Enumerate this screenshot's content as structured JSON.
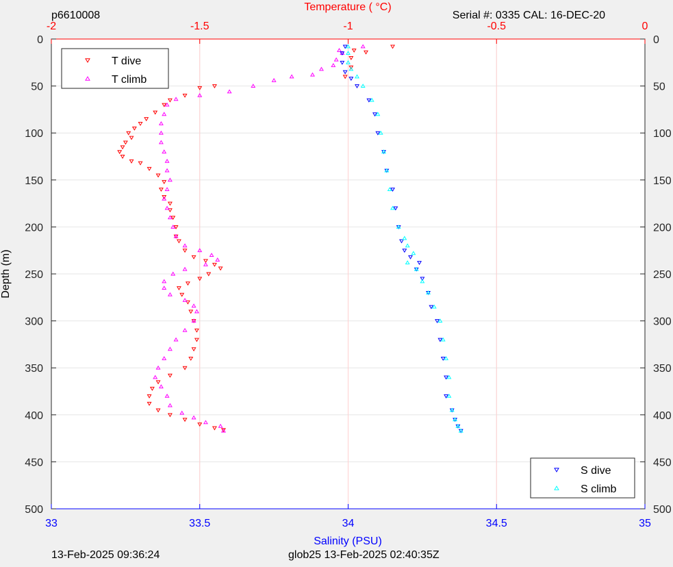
{
  "header": {
    "mission_id": "p6610008",
    "serial_cal": "Serial #: 0335  CAL: 16-DEC-20",
    "top_axis_label": "Temperature (    °C)"
  },
  "footer": {
    "timestamp_left": "13-Feb-2025 09:36:24",
    "timestamp_right": "glob25 13-Feb-2025 02:40:35Z"
  },
  "colors": {
    "temperature": "#ff0000",
    "salinity": "#0000ff",
    "t_dive": "#ff0000",
    "t_climb": "#ff00ff",
    "s_dive": "#0000ff",
    "s_climb": "#00ffff",
    "grid": "#e6e6e6",
    "temp_grid": "#ffd0d0"
  },
  "chart_data": {
    "type": "scatter",
    "ylabel": "Depth (m)",
    "xlabel": "Salinity (PSU)",
    "x2label": "Temperature (    °C)",
    "ylim": [
      0,
      500
    ],
    "y_reversed": true,
    "xlim": [
      33,
      35
    ],
    "x2lim": [
      -2,
      0
    ],
    "yticks": [
      "0",
      "50",
      "100",
      "150",
      "200",
      "250",
      "300",
      "350",
      "400",
      "450",
      "500"
    ],
    "xticks": [
      "33",
      "33.5",
      "34",
      "34.5",
      "35"
    ],
    "x2ticks": [
      "-2",
      "-1.5",
      "-1",
      "-0.5",
      "0"
    ],
    "grid": true,
    "legends": [
      {
        "placement": "top-left",
        "entries": [
          "T dive",
          "T climb"
        ]
      },
      {
        "placement": "bottom-right",
        "entries": [
          "S dive",
          "S climb"
        ]
      }
    ],
    "series": [
      {
        "name": "T dive",
        "axis": "temperature",
        "marker": "triangle-down",
        "points": [
          [
            -0.85,
            8
          ],
          [
            -0.98,
            12
          ],
          [
            -0.94,
            14
          ],
          [
            -0.99,
            20
          ],
          [
            -0.99,
            30
          ],
          [
            -1.01,
            40
          ],
          [
            -1.45,
            50
          ],
          [
            -1.5,
            52
          ],
          [
            -1.55,
            60
          ],
          [
            -1.6,
            65
          ],
          [
            -1.62,
            70
          ],
          [
            -1.65,
            78
          ],
          [
            -1.68,
            85
          ],
          [
            -1.7,
            90
          ],
          [
            -1.72,
            95
          ],
          [
            -1.74,
            100
          ],
          [
            -1.73,
            105
          ],
          [
            -1.75,
            110
          ],
          [
            -1.76,
            115
          ],
          [
            -1.77,
            120
          ],
          [
            -1.76,
            125
          ],
          [
            -1.73,
            130
          ],
          [
            -1.7,
            132
          ],
          [
            -1.67,
            138
          ],
          [
            -1.64,
            145
          ],
          [
            -1.62,
            152
          ],
          [
            -1.63,
            160
          ],
          [
            -1.62,
            168
          ],
          [
            -1.6,
            175
          ],
          [
            -1.6,
            182
          ],
          [
            -1.59,
            190
          ],
          [
            -1.58,
            200
          ],
          [
            -1.58,
            210
          ],
          [
            -1.57,
            215
          ],
          [
            -1.55,
            225
          ],
          [
            -1.52,
            232
          ],
          [
            -1.48,
            236
          ],
          [
            -1.45,
            240
          ],
          [
            -1.43,
            244
          ],
          [
            -1.47,
            250
          ],
          [
            -1.5,
            255
          ],
          [
            -1.54,
            260
          ],
          [
            -1.57,
            265
          ],
          [
            -1.56,
            272
          ],
          [
            -1.54,
            280
          ],
          [
            -1.53,
            290
          ],
          [
            -1.52,
            300
          ],
          [
            -1.51,
            310
          ],
          [
            -1.51,
            320
          ],
          [
            -1.52,
            330
          ],
          [
            -1.53,
            340
          ],
          [
            -1.55,
            350
          ],
          [
            -1.6,
            358
          ],
          [
            -1.64,
            365
          ],
          [
            -1.66,
            372
          ],
          [
            -1.67,
            380
          ],
          [
            -1.67,
            388
          ],
          [
            -1.64,
            395
          ],
          [
            -1.6,
            400
          ],
          [
            -1.55,
            405
          ],
          [
            -1.5,
            410
          ],
          [
            -1.45,
            414
          ],
          [
            -1.42,
            416
          ]
        ]
      },
      {
        "name": "T climb",
        "axis": "temperature",
        "marker": "triangle-up",
        "points": [
          [
            -0.95,
            8
          ],
          [
            -1.03,
            12
          ],
          [
            -1.02,
            15
          ],
          [
            -1.04,
            22
          ],
          [
            -1.05,
            28
          ],
          [
            -1.09,
            32
          ],
          [
            -1.12,
            38
          ],
          [
            -1.19,
            40
          ],
          [
            -1.25,
            44
          ],
          [
            -1.32,
            50
          ],
          [
            -1.4,
            56
          ],
          [
            -1.5,
            60
          ],
          [
            -1.58,
            64
          ],
          [
            -1.61,
            70
          ],
          [
            -1.62,
            80
          ],
          [
            -1.63,
            90
          ],
          [
            -1.63,
            100
          ],
          [
            -1.63,
            110
          ],
          [
            -1.62,
            120
          ],
          [
            -1.61,
            130
          ],
          [
            -1.61,
            140
          ],
          [
            -1.6,
            150
          ],
          [
            -1.61,
            160
          ],
          [
            -1.62,
            170
          ],
          [
            -1.61,
            180
          ],
          [
            -1.6,
            190
          ],
          [
            -1.59,
            200
          ],
          [
            -1.58,
            210
          ],
          [
            -1.55,
            220
          ],
          [
            -1.5,
            225
          ],
          [
            -1.46,
            230
          ],
          [
            -1.44,
            235
          ],
          [
            -1.48,
            240
          ],
          [
            -1.55,
            245
          ],
          [
            -1.59,
            250
          ],
          [
            -1.62,
            258
          ],
          [
            -1.62,
            265
          ],
          [
            -1.6,
            272
          ],
          [
            -1.55,
            278
          ],
          [
            -1.52,
            284
          ],
          [
            -1.51,
            290
          ],
          [
            -1.52,
            300
          ],
          [
            -1.55,
            310
          ],
          [
            -1.58,
            320
          ],
          [
            -1.6,
            330
          ],
          [
            -1.62,
            340
          ],
          [
            -1.64,
            350
          ],
          [
            -1.65,
            360
          ],
          [
            -1.63,
            370
          ],
          [
            -1.61,
            380
          ],
          [
            -1.6,
            390
          ],
          [
            -1.56,
            398
          ],
          [
            -1.52,
            403
          ],
          [
            -1.48,
            408
          ],
          [
            -1.43,
            412
          ],
          [
            -1.42,
            417
          ]
        ]
      },
      {
        "name": "S dive",
        "axis": "salinity",
        "marker": "triangle-down",
        "points": [
          [
            33.99,
            8
          ],
          [
            33.98,
            15
          ],
          [
            33.98,
            25
          ],
          [
            33.99,
            35
          ],
          [
            34.01,
            42
          ],
          [
            34.03,
            50
          ],
          [
            34.07,
            65
          ],
          [
            34.09,
            80
          ],
          [
            34.1,
            100
          ],
          [
            34.12,
            120
          ],
          [
            34.13,
            140
          ],
          [
            34.15,
            160
          ],
          [
            34.16,
            180
          ],
          [
            34.17,
            200
          ],
          [
            34.18,
            215
          ],
          [
            34.19,
            225
          ],
          [
            34.21,
            232
          ],
          [
            34.24,
            238
          ],
          [
            34.23,
            245
          ],
          [
            34.25,
            255
          ],
          [
            34.27,
            270
          ],
          [
            34.28,
            285
          ],
          [
            34.3,
            300
          ],
          [
            34.31,
            320
          ],
          [
            34.32,
            340
          ],
          [
            34.33,
            360
          ],
          [
            34.33,
            380
          ],
          [
            34.35,
            395
          ],
          [
            34.36,
            405
          ],
          [
            34.37,
            412
          ],
          [
            34.38,
            417
          ]
        ]
      },
      {
        "name": "S climb",
        "axis": "salinity",
        "marker": "triangle-up",
        "points": [
          [
            34.0,
            8
          ],
          [
            34.0,
            15
          ],
          [
            34.0,
            25
          ],
          [
            34.01,
            32
          ],
          [
            34.03,
            40
          ],
          [
            34.05,
            50
          ],
          [
            34.08,
            65
          ],
          [
            34.1,
            80
          ],
          [
            34.11,
            100
          ],
          [
            34.12,
            120
          ],
          [
            34.13,
            140
          ],
          [
            34.14,
            160
          ],
          [
            34.15,
            180
          ],
          [
            34.17,
            200
          ],
          [
            34.19,
            212
          ],
          [
            34.2,
            220
          ],
          [
            34.22,
            228
          ],
          [
            34.2,
            238
          ],
          [
            34.23,
            245
          ],
          [
            34.25,
            258
          ],
          [
            34.27,
            270
          ],
          [
            34.29,
            285
          ],
          [
            34.31,
            300
          ],
          [
            34.32,
            320
          ],
          [
            34.33,
            340
          ],
          [
            34.34,
            360
          ],
          [
            34.34,
            380
          ],
          [
            34.35,
            395
          ],
          [
            34.36,
            405
          ],
          [
            34.37,
            412
          ],
          [
            34.38,
            417
          ]
        ]
      }
    ]
  }
}
